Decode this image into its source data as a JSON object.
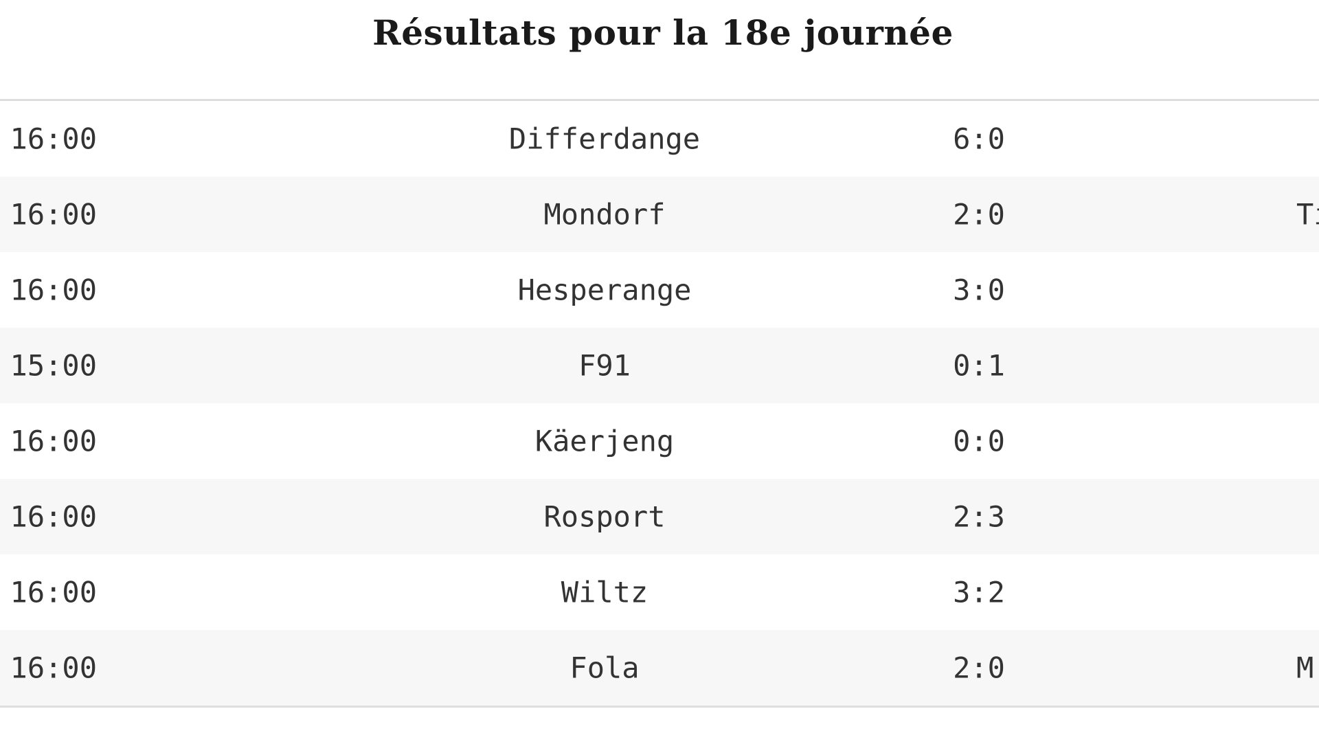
{
  "page": {
    "title": "Résultats pour la 18e journée"
  },
  "results": [
    {
      "datetime": "3 16:00",
      "home": "Differdange",
      "score": "6:0",
      "away": ""
    },
    {
      "datetime": "3 16:00",
      "home": "Mondorf",
      "score": "2:0",
      "away": "Ti"
    },
    {
      "datetime": "3 16:00",
      "home": "Hesperange",
      "score": "3:0",
      "away": ""
    },
    {
      "datetime": "3 15:00",
      "home": "F91",
      "score": "0:1",
      "away": ""
    },
    {
      "datetime": "3 16:00",
      "home": "Käerjeng",
      "score": "0:0",
      "away": ""
    },
    {
      "datetime": "3 16:00",
      "home": "Rosport",
      "score": "2:3",
      "away": ""
    },
    {
      "datetime": "3 16:00",
      "home": "Wiltz",
      "score": "3:2",
      "away": ""
    },
    {
      "datetime": "3 16:00",
      "home": "Fola",
      "score": "2:0",
      "away": "M"
    }
  ]
}
